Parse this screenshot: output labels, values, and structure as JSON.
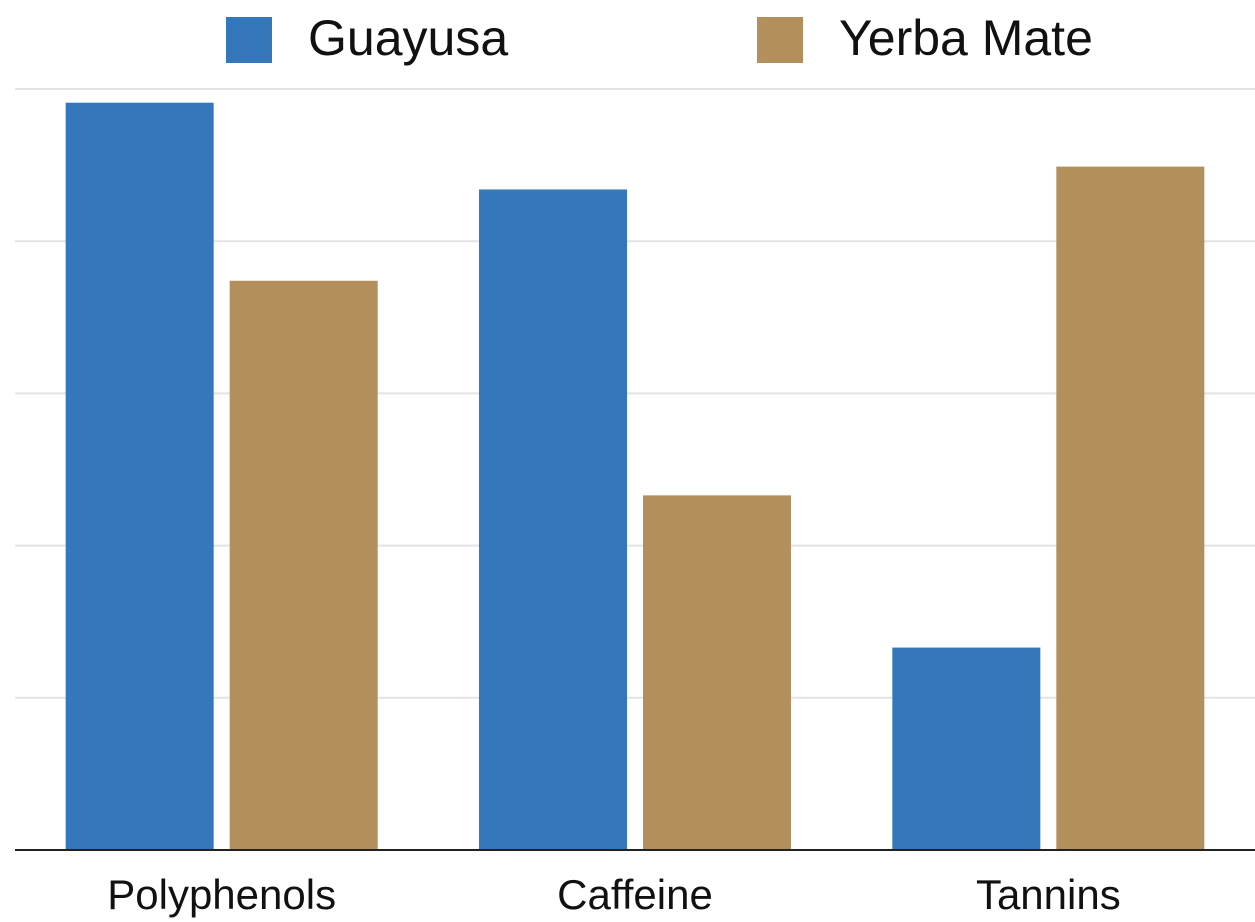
{
  "chart_data": {
    "type": "bar",
    "categories": [
      "Polyphenols",
      "Caffeine",
      "Tannins"
    ],
    "series": [
      {
        "name": "Guayusa",
        "color": "#3477bb",
        "values": [
          4.91,
          4.34,
          1.33
        ]
      },
      {
        "name": "Yerba Mate",
        "color": "#b38f5c",
        "values": [
          3.74,
          2.33,
          4.49
        ]
      }
    ],
    "ylim": [
      0,
      5
    ],
    "yticks": [
      0,
      1,
      2,
      3,
      4,
      5
    ],
    "grid": true,
    "legend": "top"
  }
}
